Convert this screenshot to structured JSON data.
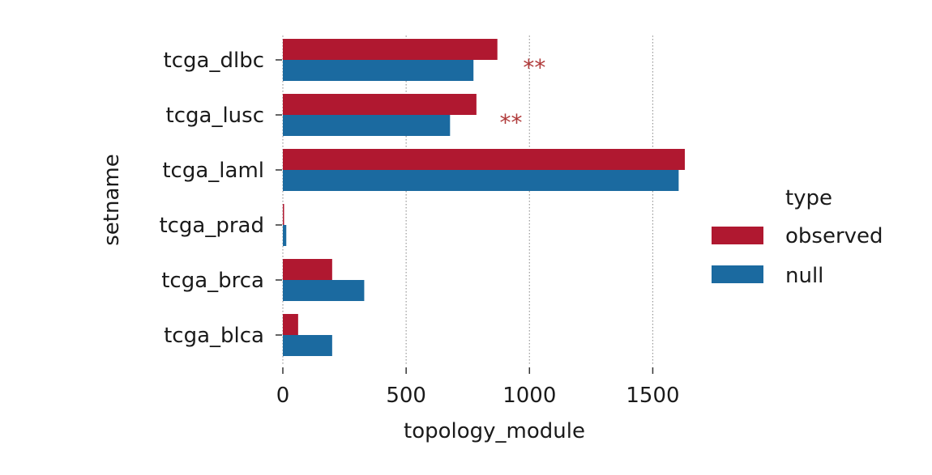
{
  "chart_data": {
    "type": "bar",
    "orientation": "horizontal",
    "categories": [
      "tcga_dlbc",
      "tcga_lusc",
      "tcga_laml",
      "tcga_prad",
      "tcga_brca",
      "tcga_blca"
    ],
    "series": [
      {
        "name": "observed",
        "color": "#b01830",
        "values": [
          870,
          785,
          1630,
          5,
          200,
          62
        ]
      },
      {
        "name": "null",
        "color": "#1b6aa0",
        "values": [
          773,
          678,
          1605,
          14,
          330,
          200
        ]
      }
    ],
    "xlabel": "topology_module",
    "ylabel": "setname",
    "xlim": [
      0,
      1650
    ],
    "xticks": [
      0,
      500,
      1000,
      1500
    ],
    "xtick_labels": [
      "0",
      "500",
      "1000",
      "1500"
    ],
    "grid": "vertical-dotted",
    "legend": {
      "title": "type",
      "placement": "right"
    },
    "annotations": [
      {
        "category": "tcga_dlbc",
        "text": "**",
        "x": 1020,
        "color": "#b03a3a"
      },
      {
        "category": "tcga_lusc",
        "text": "**",
        "x": 925,
        "color": "#b03a3a"
      }
    ]
  }
}
